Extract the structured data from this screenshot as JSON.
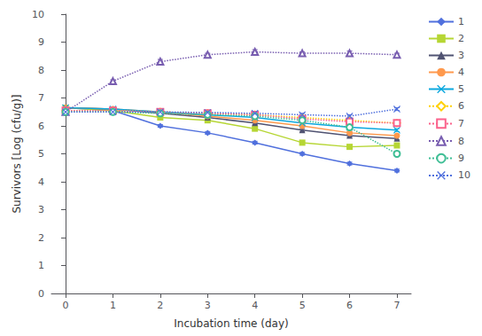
{
  "chart_data": {
    "type": "line",
    "xlabel": "Incubation time (day)",
    "ylabel": "Survivors [Log (cfu/g)]",
    "x": [
      0,
      1,
      2,
      3,
      4,
      5,
      6,
      7
    ],
    "series": [
      {
        "name": "1",
        "values": [
          6.65,
          6.55,
          6.0,
          5.75,
          5.4,
          5.0,
          4.65,
          4.4
        ],
        "errors": [
          0.05,
          0.05,
          0.05,
          0.05,
          0.05,
          0.05,
          0.05,
          0.05
        ],
        "marker": "diamond",
        "line_style": "solid"
      },
      {
        "name": "2",
        "values": [
          6.65,
          6.55,
          6.3,
          6.2,
          5.9,
          5.4,
          5.25,
          5.3
        ],
        "errors": [
          0.05,
          0.05,
          0.05,
          0.05,
          0.05,
          0.05,
          0.05,
          0.05
        ],
        "marker": "square",
        "line_style": "solid"
      },
      {
        "name": "3",
        "values": [
          6.65,
          6.6,
          6.45,
          6.3,
          6.1,
          5.85,
          5.65,
          5.55
        ],
        "errors": [
          0.05,
          0.05,
          0.05,
          0.05,
          0.05,
          0.05,
          0.05,
          0.05
        ],
        "marker": "triangle",
        "line_style": "solid"
      },
      {
        "name": "4",
        "values": [
          6.65,
          6.6,
          6.5,
          6.35,
          6.2,
          6.0,
          5.75,
          5.65
        ],
        "errors": [
          0.05,
          0.05,
          0.05,
          0.05,
          0.05,
          0.05,
          0.05,
          0.05
        ],
        "marker": "circle",
        "line_style": "solid"
      },
      {
        "name": "5",
        "values": [
          6.65,
          6.6,
          6.5,
          6.4,
          6.3,
          6.1,
          5.95,
          5.85
        ],
        "errors": [
          0.05,
          0.05,
          0.05,
          0.05,
          0.05,
          0.05,
          0.05,
          0.05
        ],
        "marker": "x",
        "line_style": "solid"
      },
      {
        "name": "6",
        "values": [
          6.55,
          6.55,
          6.5,
          6.45,
          6.4,
          6.3,
          6.2,
          6.1
        ],
        "errors": [
          0.05,
          0.05,
          0.05,
          0.05,
          0.05,
          0.05,
          0.05,
          0.05
        ],
        "marker": "open-diamond",
        "line_style": "dotted"
      },
      {
        "name": "7",
        "values": [
          6.55,
          6.55,
          6.5,
          6.45,
          6.4,
          6.25,
          6.15,
          6.1
        ],
        "errors": [
          0.05,
          0.05,
          0.05,
          0.05,
          0.05,
          0.05,
          0.05,
          0.05
        ],
        "marker": "open-square",
        "line_style": "dotted"
      },
      {
        "name": "8",
        "values": [
          6.5,
          7.6,
          8.3,
          8.55,
          8.65,
          8.6,
          8.6,
          8.55
        ],
        "errors": [
          0.05,
          0.05,
          0.08,
          0.05,
          0.08,
          0.05,
          0.08,
          0.05
        ],
        "marker": "open-triangle",
        "line_style": "dotted"
      },
      {
        "name": "9",
        "values": [
          6.5,
          6.5,
          6.45,
          6.4,
          6.35,
          6.2,
          5.95,
          5.0
        ],
        "errors": [
          0.05,
          0.05,
          0.05,
          0.05,
          0.05,
          0.05,
          0.05,
          0.05
        ],
        "marker": "open-circle",
        "line_style": "dotted"
      },
      {
        "name": "10",
        "values": [
          6.5,
          6.5,
          6.5,
          6.48,
          6.45,
          6.4,
          6.35,
          6.6
        ],
        "errors": [
          0.05,
          0.05,
          0.05,
          0.05,
          0.05,
          0.05,
          0.05,
          0.05
        ],
        "marker": "x",
        "line_style": "dotted"
      }
    ],
    "xlim": [
      -0.3,
      7.3
    ],
    "xticks": [
      0,
      1,
      2,
      3,
      4,
      5,
      6,
      7
    ],
    "ylim": [
      0,
      10
    ],
    "yticks": [
      0,
      1,
      2,
      3,
      4,
      5,
      6,
      7,
      8,
      9,
      10
    ],
    "grid": false,
    "legend": "right"
  }
}
